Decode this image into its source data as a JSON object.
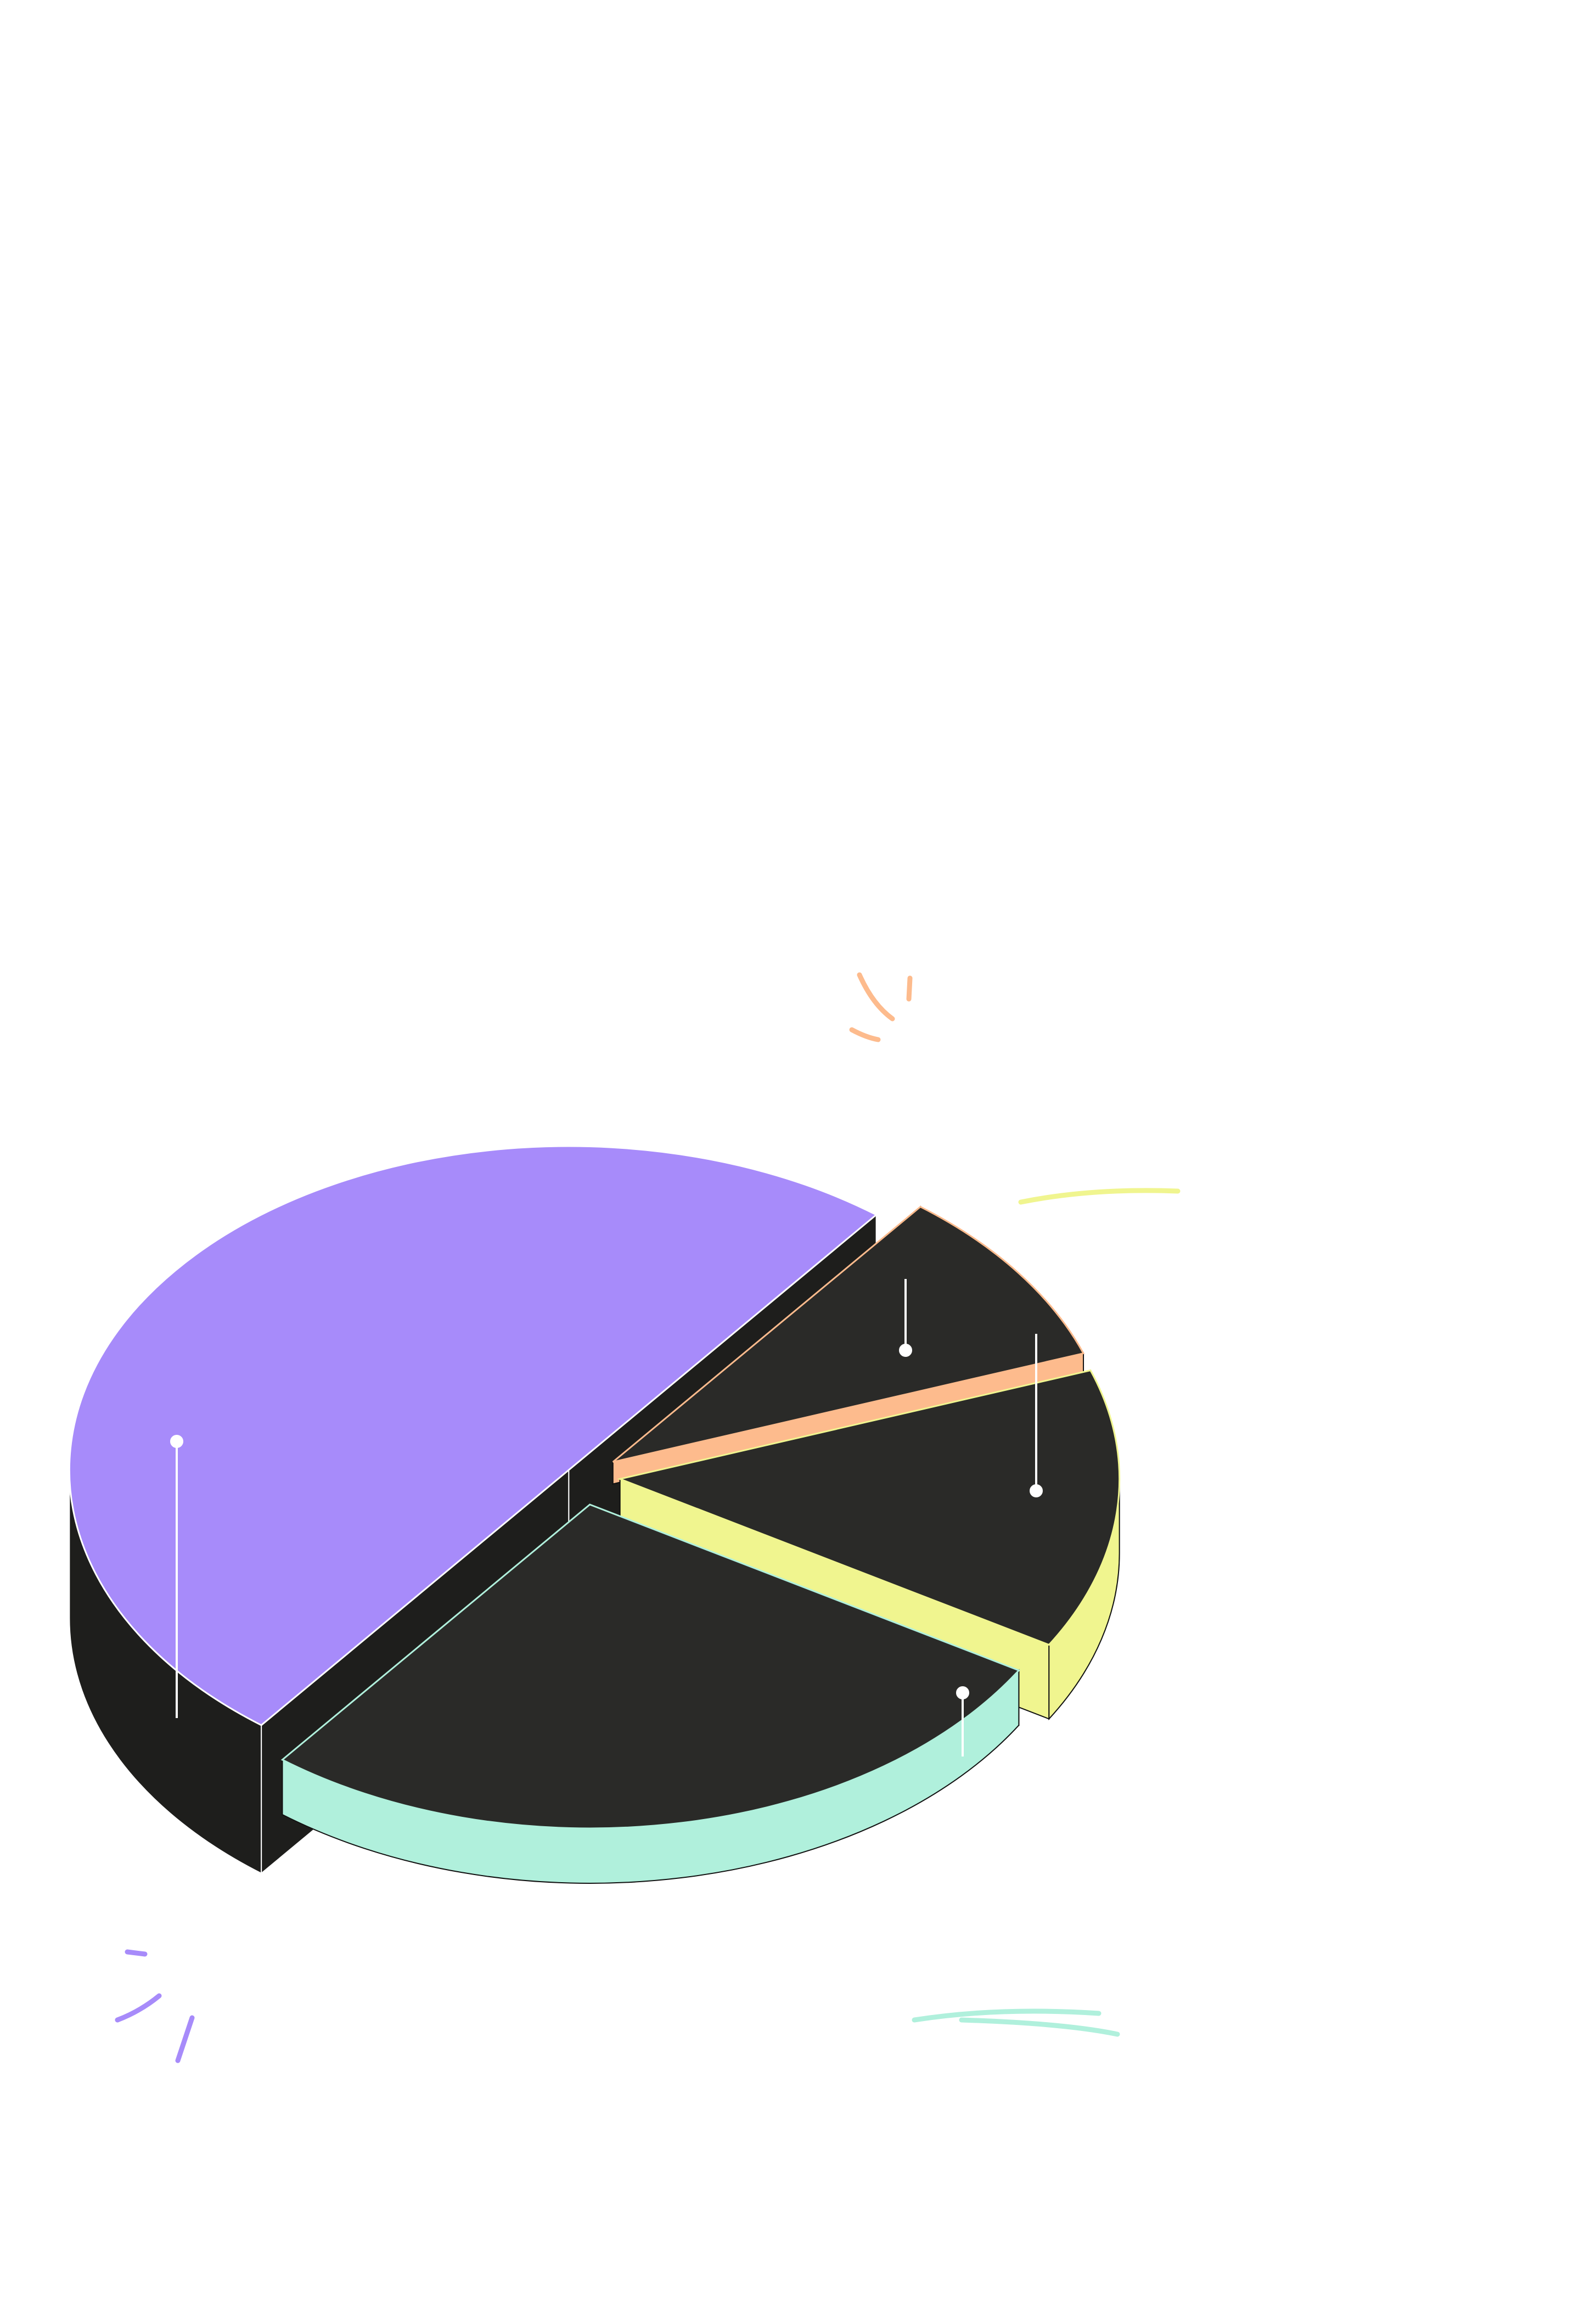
{
  "chart_data": {
    "type": "pie",
    "values": [
      50,
      9,
      14,
      27
    ],
    "colors": [
      "#a78bfa",
      "#fdbb8d",
      "#f0f58f",
      "#b0f0dc"
    ]
  }
}
